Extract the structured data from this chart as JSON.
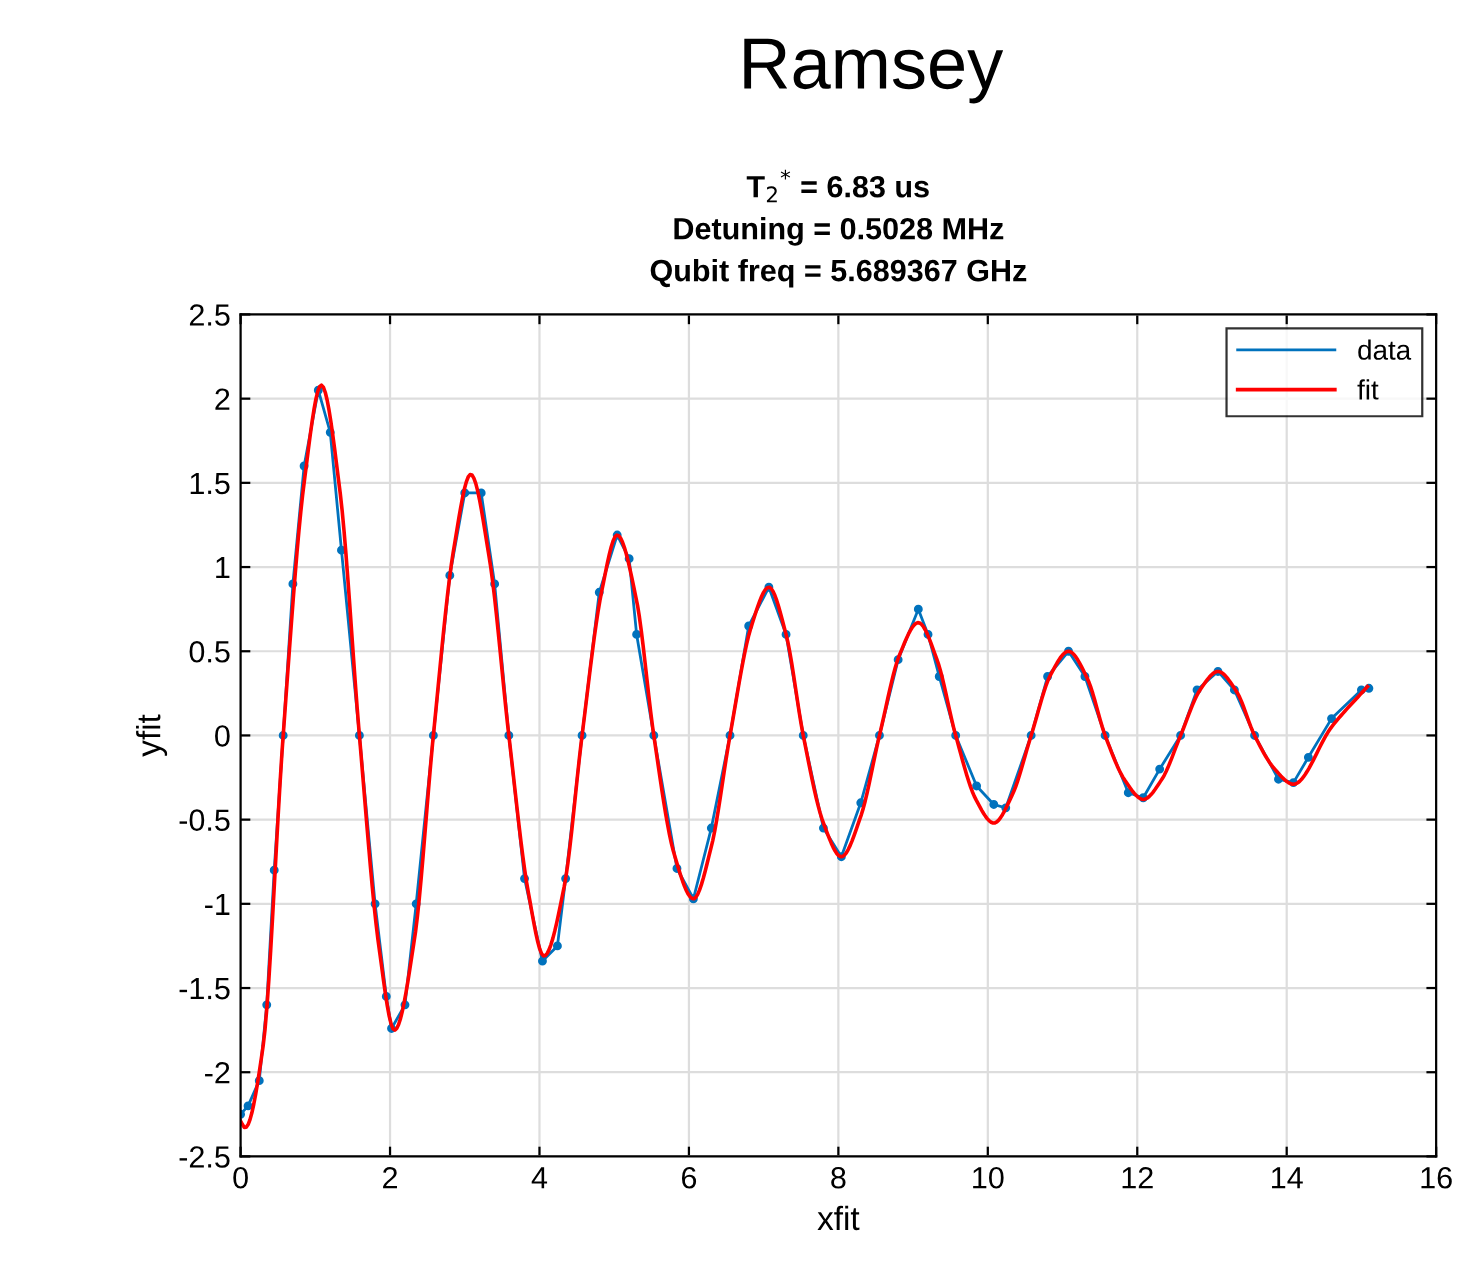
{
  "chart_data": {
    "type": "line",
    "title": "Ramsey",
    "subtitle": "T$_{2}$$^{*}$ = 6.83 us\nDetuning = 0.5028 MHz\nQubit freq = 5.689367 GHz",
    "xlabel": "xfit",
    "ylabel": "yfit",
    "xlim": [
      0,
      16
    ],
    "xticks": [
      0,
      2,
      4,
      6,
      8,
      10,
      12,
      14,
      16
    ],
    "ylim": [
      -2.5,
      2.5
    ],
    "yticks": [
      -2.5,
      -2,
      -1.5,
      -1,
      -0.5,
      0,
      0.5,
      1,
      1.5,
      2,
      2.5
    ],
    "grid": true,
    "legend": "top right",
    "series": [
      {
        "name": "data",
        "color": "#0072bd",
        "marker": "circle",
        "x": [
          0,
          0.1,
          0.25,
          0.35,
          0.45,
          0.57,
          0.7,
          0.85,
          1.04,
          1.2,
          1.35,
          1.59,
          1.8,
          1.95,
          2.02,
          2.2,
          2.35,
          2.58,
          2.8,
          3.0,
          3.22,
          3.4,
          3.59,
          3.8,
          4.04,
          4.24,
          4.35,
          4.57,
          4.8,
          5.04,
          5.2,
          5.3,
          5.53,
          5.84,
          6.06,
          6.3,
          6.55,
          6.8,
          7.07,
          7.3,
          7.53,
          7.8,
          8.04,
          8.3,
          8.55,
          8.8,
          9.07,
          9.2,
          9.35,
          9.57,
          9.85,
          10.08,
          10.24,
          10.58,
          10.8,
          11.08,
          11.3,
          11.57,
          11.88,
          12.08,
          12.3,
          12.58,
          12.8,
          13.08,
          13.3,
          13.57,
          13.89,
          14.09,
          14.29,
          14.6,
          15.0,
          15.1
        ],
        "values": [
          -2.25,
          -2.2,
          -2.05,
          -1.6,
          -0.8,
          0,
          0.9,
          1.6,
          2.05,
          1.8,
          1.1,
          0,
          -1.0,
          -1.55,
          -1.74,
          -1.6,
          -1.0,
          0,
          0.95,
          1.44,
          1.44,
          0.9,
          0,
          -0.85,
          -1.34,
          -1.25,
          -0.85,
          0,
          0.85,
          1.19,
          1.05,
          0.6,
          0,
          -0.79,
          -0.97,
          -0.55,
          0,
          0.65,
          0.88,
          0.6,
          0,
          -0.55,
          -0.72,
          -0.4,
          0,
          0.45,
          0.75,
          0.6,
          0.35,
          0,
          -0.3,
          -0.41,
          -0.43,
          0,
          0.35,
          0.5,
          0.35,
          0,
          -0.34,
          -0.37,
          -0.2,
          0,
          0.27,
          0.38,
          0.27,
          0,
          -0.26,
          -0.28,
          -0.13,
          0.1,
          0.27,
          0.28
        ]
      },
      {
        "name": "fit",
        "color": "#ff0000",
        "marker": "none",
        "x": [
          0,
          0.06,
          0.3,
          0.57,
          0.85,
          1.08,
          1.33,
          1.59,
          1.85,
          2.06,
          2.33,
          2.58,
          2.85,
          3.08,
          3.33,
          3.59,
          3.85,
          4.06,
          4.33,
          4.57,
          4.83,
          5.04,
          5.3,
          5.53,
          5.8,
          6.06,
          6.3,
          6.55,
          6.83,
          7.07,
          7.3,
          7.53,
          7.8,
          8.04,
          8.3,
          8.55,
          8.82,
          9.07,
          9.32,
          9.57,
          9.84,
          10.08,
          10.33,
          10.58,
          10.84,
          11.08,
          11.33,
          11.57,
          11.84,
          12.08,
          12.33,
          12.58,
          12.84,
          13.08,
          13.33,
          13.57,
          13.84,
          14.09,
          14.6,
          15.08
        ],
        "values": [
          -2.29,
          -2.33,
          -1.85,
          0,
          1.5,
          2.08,
          1.45,
          0,
          -1.25,
          -1.75,
          -1.2,
          0,
          1.1,
          1.55,
          1.05,
          0,
          -0.93,
          -1.31,
          -0.9,
          0,
          0.85,
          1.19,
          0.8,
          0,
          -0.7,
          -0.97,
          -0.66,
          0,
          0.64,
          0.88,
          0.6,
          0,
          -0.52,
          -0.72,
          -0.48,
          0,
          0.48,
          0.67,
          0.45,
          0,
          -0.38,
          -0.52,
          -0.35,
          0,
          0.36,
          0.5,
          0.34,
          0,
          -0.27,
          -0.38,
          -0.26,
          0,
          0.27,
          0.38,
          0.26,
          0,
          -0.2,
          -0.29,
          0.05,
          0.29
        ]
      }
    ]
  }
}
